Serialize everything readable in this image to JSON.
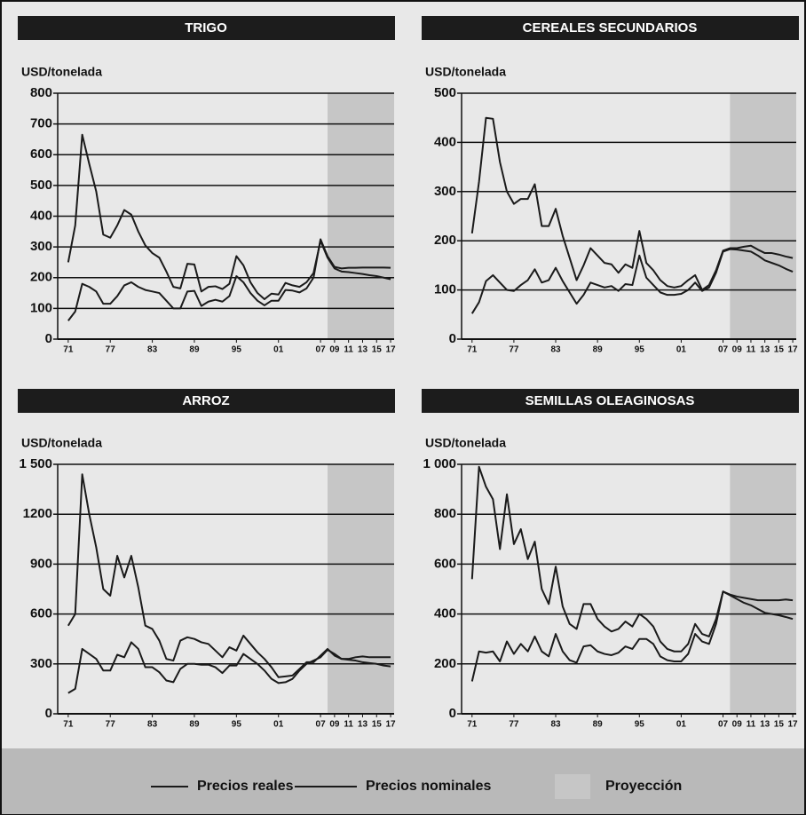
{
  "chart_data": [
    {
      "type": "line",
      "title": "TRIGO",
      "ylabel": "USD/tonelada",
      "x": [
        1971,
        1972,
        1973,
        1974,
        1975,
        1976,
        1977,
        1978,
        1979,
        1980,
        1981,
        1982,
        1983,
        1984,
        1985,
        1986,
        1987,
        1988,
        1989,
        1990,
        1991,
        1992,
        1993,
        1994,
        1995,
        1996,
        1997,
        1998,
        1999,
        2000,
        2001,
        2002,
        2003,
        2004,
        2005,
        2006,
        2007,
        2008,
        2009,
        2010,
        2011,
        2012,
        2013,
        2014,
        2015,
        2016,
        2017
      ],
      "series": [
        {
          "name": "Precios reales",
          "color": "#1a1a1a",
          "values": [
            250,
            370,
            665,
            570,
            480,
            340,
            330,
            370,
            420,
            405,
            350,
            305,
            280,
            265,
            220,
            170,
            165,
            245,
            243,
            155,
            170,
            172,
            163,
            180,
            270,
            240,
            185,
            150,
            130,
            148,
            145,
            183,
            175,
            170,
            185,
            215,
            320,
            265,
            230,
            220,
            218,
            215,
            212,
            208,
            205,
            200,
            195
          ]
        },
        {
          "name": "Precios nominales",
          "color": "#1a1a1a",
          "values": [
            60,
            90,
            180,
            170,
            155,
            115,
            115,
            140,
            175,
            185,
            170,
            160,
            155,
            150,
            125,
            100,
            100,
            155,
            157,
            108,
            122,
            128,
            122,
            140,
            205,
            185,
            150,
            125,
            110,
            125,
            125,
            160,
            158,
            152,
            165,
            200,
            325,
            270,
            235,
            230,
            232,
            232,
            233,
            233,
            233,
            233,
            232
          ]
        }
      ],
      "xlim": [
        1969.5,
        2017.5
      ],
      "xticks": [
        {
          "value": 1971,
          "label": "71"
        },
        {
          "value": 1977,
          "label": "77"
        },
        {
          "value": 1983,
          "label": "83"
        },
        {
          "value": 1989,
          "label": "89"
        },
        {
          "value": 1995,
          "label": "95"
        },
        {
          "value": 2001,
          "label": "01"
        },
        {
          "value": 2007,
          "label": "07"
        },
        {
          "value": 2009,
          "label": "09"
        },
        {
          "value": 2011,
          "label": "11"
        },
        {
          "value": 2013,
          "label": "13"
        },
        {
          "value": 2015,
          "label": "15"
        },
        {
          "value": 2017,
          "label": "17"
        }
      ],
      "ylim": [
        0,
        800
      ],
      "yticks": [
        0,
        100,
        200,
        300,
        400,
        500,
        600,
        700,
        800
      ],
      "grid": true,
      "projection": {
        "label": "Proyección",
        "start": 2008,
        "color": "#c6c6c6"
      }
    },
    {
      "type": "line",
      "title": "CEREALES SECUNDARIOS",
      "ylabel": "USD/tonelada",
      "x": [
        1971,
        1972,
        1973,
        1974,
        1975,
        1976,
        1977,
        1978,
        1979,
        1980,
        1981,
        1982,
        1983,
        1984,
        1985,
        1986,
        1987,
        1988,
        1989,
        1990,
        1991,
        1992,
        1993,
        1994,
        1995,
        1996,
        1997,
        1998,
        1999,
        2000,
        2001,
        2002,
        2003,
        2004,
        2005,
        2006,
        2007,
        2008,
        2009,
        2010,
        2011,
        2012,
        2013,
        2014,
        2015,
        2016,
        2017
      ],
      "series": [
        {
          "name": "Precios reales",
          "color": "#1a1a1a",
          "values": [
            215,
            320,
            450,
            448,
            360,
            300,
            275,
            285,
            285,
            315,
            230,
            230,
            265,
            210,
            165,
            120,
            150,
            185,
            170,
            155,
            152,
            135,
            152,
            145,
            220,
            155,
            140,
            120,
            108,
            105,
            108,
            120,
            130,
            100,
            110,
            140,
            180,
            185,
            185,
            188,
            190,
            182,
            175,
            175,
            172,
            168,
            165
          ]
        },
        {
          "name": "Precios nominales",
          "color": "#1a1a1a",
          "values": [
            52,
            75,
            118,
            130,
            115,
            100,
            98,
            110,
            120,
            142,
            115,
            120,
            145,
            118,
            95,
            72,
            90,
            115,
            110,
            105,
            108,
            98,
            112,
            110,
            170,
            125,
            110,
            95,
            90,
            90,
            92,
            100,
            115,
            98,
            105,
            135,
            178,
            183,
            182,
            180,
            178,
            170,
            160,
            155,
            150,
            143,
            137
          ]
        }
      ],
      "xlim": [
        1969.5,
        2017.5
      ],
      "xticks": [
        {
          "value": 1971,
          "label": "71"
        },
        {
          "value": 1977,
          "label": "77"
        },
        {
          "value": 1983,
          "label": "83"
        },
        {
          "value": 1989,
          "label": "89"
        },
        {
          "value": 1995,
          "label": "95"
        },
        {
          "value": 2001,
          "label": "01"
        },
        {
          "value": 2007,
          "label": "07"
        },
        {
          "value": 2009,
          "label": "09"
        },
        {
          "value": 2011,
          "label": "11"
        },
        {
          "value": 2013,
          "label": "13"
        },
        {
          "value": 2015,
          "label": "15"
        },
        {
          "value": 2017,
          "label": "17"
        }
      ],
      "ylim": [
        0,
        500
      ],
      "yticks": [
        0,
        100,
        200,
        300,
        400,
        500
      ],
      "grid": true,
      "projection": {
        "start": 2008,
        "color": "#c6c6c6"
      }
    },
    {
      "type": "line",
      "title": "ARROZ",
      "ylabel": "USD/tonelada",
      "x": [
        1971,
        1972,
        1973,
        1974,
        1975,
        1976,
        1977,
        1978,
        1979,
        1980,
        1981,
        1982,
        1983,
        1984,
        1985,
        1986,
        1987,
        1988,
        1989,
        1990,
        1991,
        1992,
        1993,
        1994,
        1995,
        1996,
        1997,
        1998,
        1999,
        2000,
        2001,
        2002,
        2003,
        2004,
        2005,
        2006,
        2007,
        2008,
        2009,
        2010,
        2011,
        2012,
        2013,
        2014,
        2015,
        2016,
        2017
      ],
      "series": [
        {
          "name": "Precios reales",
          "color": "#1a1a1a",
          "values": [
            530,
            600,
            1440,
            1200,
            1000,
            750,
            710,
            950,
            820,
            950,
            760,
            530,
            510,
            440,
            330,
            320,
            440,
            460,
            450,
            430,
            420,
            380,
            340,
            400,
            380,
            470,
            420,
            370,
            330,
            280,
            220,
            225,
            230,
            270,
            310,
            310,
            350,
            390,
            350,
            330,
            325,
            320,
            310,
            305,
            300,
            290,
            285
          ]
        },
        {
          "name": "Precios nominales",
          "color": "#1a1a1a",
          "values": [
            125,
            150,
            390,
            360,
            330,
            260,
            260,
            355,
            340,
            430,
            390,
            280,
            280,
            250,
            200,
            190,
            270,
            300,
            300,
            295,
            295,
            280,
            245,
            290,
            290,
            360,
            330,
            300,
            260,
            210,
            185,
            190,
            210,
            260,
            300,
            320,
            340,
            385,
            360,
            330,
            330,
            340,
            345,
            340,
            340,
            340,
            340
          ]
        }
      ],
      "xlim": [
        1969.5,
        2017.5
      ],
      "xticks": [
        {
          "value": 1971,
          "label": "71"
        },
        {
          "value": 1977,
          "label": "77"
        },
        {
          "value": 1983,
          "label": "83"
        },
        {
          "value": 1989,
          "label": "89"
        },
        {
          "value": 1995,
          "label": "95"
        },
        {
          "value": 2001,
          "label": "01"
        },
        {
          "value": 2007,
          "label": "07"
        },
        {
          "value": 2009,
          "label": "09"
        },
        {
          "value": 2011,
          "label": "11"
        },
        {
          "value": 2013,
          "label": "13"
        },
        {
          "value": 2015,
          "label": "15"
        },
        {
          "value": 2017,
          "label": "17"
        }
      ],
      "ylim": [
        0,
        1500
      ],
      "yticks": [
        0,
        300,
        600,
        900,
        1200,
        {
          "value": 1500,
          "label": "1 500"
        }
      ],
      "grid": true,
      "projection": {
        "start": 2008,
        "color": "#c6c6c6"
      }
    },
    {
      "type": "line",
      "title": "SEMILLAS OLEAGINOSAS",
      "ylabel": "USD/tonelada",
      "x": [
        1971,
        1972,
        1973,
        1974,
        1975,
        1976,
        1977,
        1978,
        1979,
        1980,
        1981,
        1982,
        1983,
        1984,
        1985,
        1986,
        1987,
        1988,
        1989,
        1990,
        1991,
        1992,
        1993,
        1994,
        1995,
        1996,
        1997,
        1998,
        1999,
        2000,
        2001,
        2002,
        2003,
        2004,
        2005,
        2006,
        2007,
        2008,
        2009,
        2010,
        2011,
        2012,
        2013,
        2014,
        2015,
        2016,
        2017
      ],
      "series": [
        {
          "name": "Precios reales",
          "color": "#1a1a1a",
          "values": [
            540,
            990,
            910,
            860,
            660,
            880,
            680,
            740,
            620,
            690,
            500,
            440,
            590,
            430,
            360,
            340,
            440,
            440,
            380,
            350,
            330,
            340,
            370,
            350,
            400,
            380,
            350,
            290,
            260,
            250,
            250,
            280,
            360,
            320,
            310,
            380,
            490,
            475,
            460,
            445,
            435,
            420,
            405,
            400,
            395,
            388,
            380
          ]
        },
        {
          "name": "Precios nominales",
          "color": "#1a1a1a",
          "values": [
            130,
            250,
            245,
            250,
            210,
            290,
            240,
            280,
            250,
            310,
            250,
            230,
            320,
            250,
            215,
            205,
            270,
            275,
            250,
            240,
            235,
            245,
            270,
            260,
            300,
            300,
            280,
            230,
            215,
            210,
            210,
            240,
            320,
            290,
            280,
            360,
            490,
            478,
            470,
            465,
            460,
            455,
            455,
            455,
            455,
            458,
            455
          ]
        }
      ],
      "xlim": [
        1969.5,
        2017.5
      ],
      "xticks": [
        {
          "value": 1971,
          "label": "71"
        },
        {
          "value": 1977,
          "label": "77"
        },
        {
          "value": 1983,
          "label": "83"
        },
        {
          "value": 1989,
          "label": "89"
        },
        {
          "value": 1995,
          "label": "95"
        },
        {
          "value": 2001,
          "label": "01"
        },
        {
          "value": 2007,
          "label": "07"
        },
        {
          "value": 2009,
          "label": "09"
        },
        {
          "value": 2011,
          "label": "11"
        },
        {
          "value": 2013,
          "label": "13"
        },
        {
          "value": 2015,
          "label": "15"
        },
        {
          "value": 2017,
          "label": "17"
        }
      ],
      "ylim": [
        0,
        1000
      ],
      "yticks": [
        0,
        200,
        400,
        600,
        800,
        {
          "value": 1000,
          "label": "1 000"
        }
      ],
      "grid": true,
      "projection": {
        "start": 2008,
        "color": "#c6c6c6"
      }
    }
  ]
}
